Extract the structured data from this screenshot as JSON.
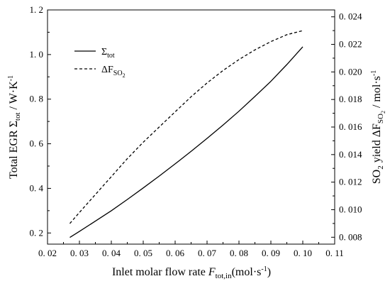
{
  "chart_data": {
    "type": "line",
    "title": "",
    "xlabel": {
      "text": "Inlet molar flow rate ",
      "symbol": "F",
      "subscript": "tot,in",
      "units": "(mol·s",
      "units_sup": "-1",
      "units_close": ")"
    },
    "ylabel_left": {
      "text": "Total EGR Σ",
      "subscript": "tot",
      "units": " / W·K",
      "units_sup": "-1"
    },
    "ylabel_right": {
      "text_a": "SO",
      "sub_a": "2",
      "text_b": " yield ΔF",
      "sub_b": "SO",
      "sub_b2": "2",
      "units": " / mol·s",
      "units_sup": "-1"
    },
    "xlim": [
      0.02,
      0.11
    ],
    "ylim_left": [
      0.15,
      1.2
    ],
    "ylim_right": [
      0.0075,
      0.0245
    ],
    "x_ticks": [
      0.02,
      0.03,
      0.04,
      0.05,
      0.06,
      0.07,
      0.08,
      0.09,
      0.1,
      0.11
    ],
    "x_tick_labels": [
      "0. 02",
      "0. 03",
      "0. 04",
      "0. 05",
      "0. 06",
      "0. 07",
      "0. 08",
      "0. 09",
      "0. 10",
      "0. 11"
    ],
    "y_left_ticks": [
      0.2,
      0.4,
      0.6,
      0.8,
      1.0,
      1.2
    ],
    "y_left_tick_labels": [
      "0. 2",
      "0. 4",
      "0. 6",
      "0. 8",
      "1. 0",
      "1. 2"
    ],
    "y_right_ticks": [
      0.008,
      0.01,
      0.012,
      0.014,
      0.016,
      0.018,
      0.02,
      0.022,
      0.024
    ],
    "y_right_tick_labels": [
      "0. 008",
      "0. 010",
      "0. 012",
      "0. 014",
      "0. 016",
      "0. 018",
      "0. 020",
      "0. 022",
      "0. 024"
    ],
    "grid": false,
    "legend": {
      "placement": "top-left",
      "entries": [
        {
          "label": "Σ",
          "sub": "tot",
          "style": "solid"
        },
        {
          "label": "ΔF",
          "sub": "SO",
          "sub2": "2",
          "style": "dashed"
        }
      ]
    },
    "series": [
      {
        "axis": "left",
        "style": "solid",
        "x": [
          0.027,
          0.03,
          0.035,
          0.04,
          0.045,
          0.05,
          0.055,
          0.06,
          0.065,
          0.07,
          0.075,
          0.08,
          0.085,
          0.09,
          0.095,
          0.1
        ],
        "y": [
          0.18,
          0.207,
          0.253,
          0.3,
          0.35,
          0.402,
          0.455,
          0.51,
          0.566,
          0.624,
          0.684,
          0.746,
          0.812,
          0.88,
          0.955,
          1.035
        ]
      },
      {
        "axis": "right",
        "style": "dashed",
        "x": [
          0.027,
          0.03,
          0.035,
          0.04,
          0.045,
          0.05,
          0.055,
          0.06,
          0.065,
          0.07,
          0.075,
          0.08,
          0.085,
          0.09,
          0.095,
          0.1
        ],
        "y": [
          0.009,
          0.0098,
          0.0111,
          0.0124,
          0.0137,
          0.0149,
          0.016,
          0.0171,
          0.0182,
          0.0192,
          0.0201,
          0.0209,
          0.0216,
          0.0222,
          0.0227,
          0.023
        ]
      }
    ]
  }
}
